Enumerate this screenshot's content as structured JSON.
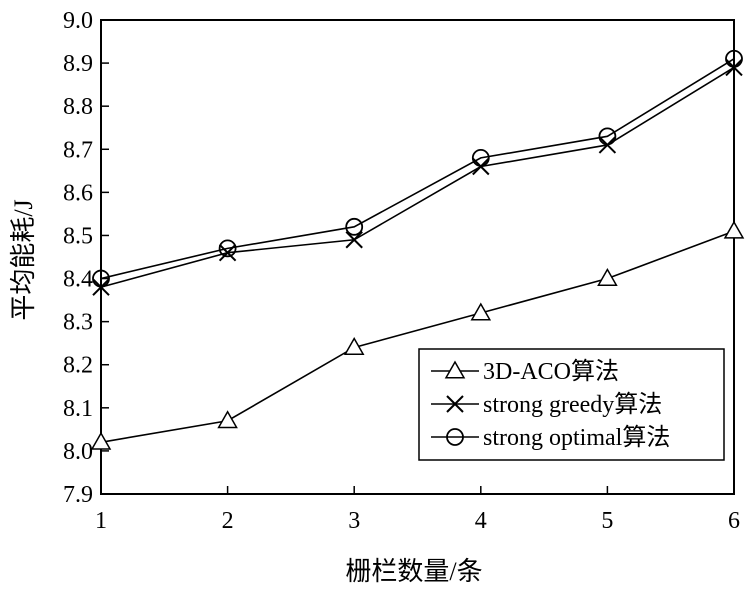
{
  "chart_data": {
    "type": "line",
    "title": "",
    "xlabel": "栅栏数量/条",
    "ylabel": "平均能耗/J",
    "x": [
      1,
      2,
      3,
      4,
      5,
      6
    ],
    "xlim": [
      1,
      6
    ],
    "ylim": [
      7.9,
      9.0
    ],
    "x_ticks": [
      "1",
      "2",
      "3",
      "4",
      "5",
      "6"
    ],
    "y_ticks": [
      "7.9",
      "8.0",
      "8.1",
      "8.2",
      "8.3",
      "8.4",
      "8.5",
      "8.6",
      "8.7",
      "8.8",
      "8.9",
      "9.0"
    ],
    "grid": false,
    "legend_position": "bottom-right",
    "series": [
      {
        "name": "3D-ACO算法",
        "marker": "triangle",
        "values": [
          8.02,
          8.07,
          8.24,
          8.32,
          8.4,
          8.51
        ]
      },
      {
        "name": "strong greedy算法",
        "marker": "x",
        "values": [
          8.38,
          8.46,
          8.49,
          8.66,
          8.71,
          8.89
        ]
      },
      {
        "name": "strong optimal算法",
        "marker": "circle",
        "values": [
          8.4,
          8.47,
          8.52,
          8.68,
          8.73,
          8.91
        ]
      }
    ]
  }
}
